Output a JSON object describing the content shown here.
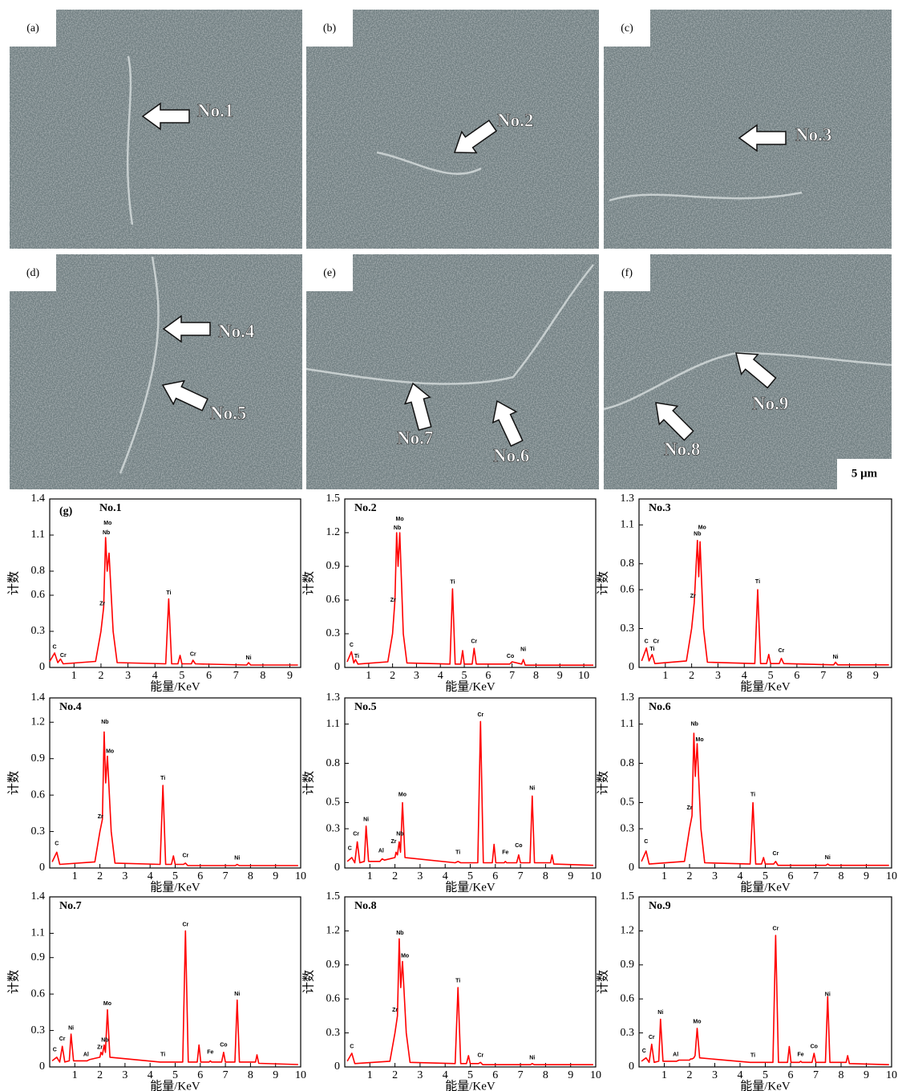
{
  "sem_panels": [
    {
      "label": "(a)",
      "markers": [
        "No.1"
      ]
    },
    {
      "label": "(b)",
      "markers": [
        "No.2"
      ]
    },
    {
      "label": "(c)",
      "markers": [
        "No.3"
      ]
    },
    {
      "label": "(d)",
      "markers": [
        "No.4",
        "No.5"
      ]
    },
    {
      "label": "(e)",
      "markers": [
        "No.7",
        "No.6"
      ]
    },
    {
      "label": "(f)",
      "markers": [
        "No.9",
        "No.8"
      ],
      "scale_bar": "5 μm"
    }
  ],
  "chart_data": [
    {
      "type": "line",
      "panel_label": "(g)",
      "title": "No.1",
      "xlabel": "能量/KeV",
      "ylabel": "计数",
      "color": "#ff0000",
      "xlim": [
        0.1,
        9.4
      ],
      "xticks": [
        1,
        2,
        3,
        4,
        5,
        6,
        7,
        8,
        9
      ],
      "ylim": [
        0,
        1.4
      ],
      "yticks": [
        0,
        0.3,
        0.6,
        0.8,
        1.1,
        1.4
      ],
      "x": [
        0.1,
        0.28,
        0.4,
        0.5,
        0.6,
        1.8,
        2.0,
        2.1,
        2.17,
        2.23,
        2.3,
        2.45,
        2.6,
        4.4,
        4.51,
        4.62,
        4.85,
        4.93,
        5.0,
        5.35,
        5.41,
        5.5,
        7.4,
        7.47,
        7.55,
        9.3
      ],
      "values": [
        0.05,
        0.12,
        0.04,
        0.07,
        0.03,
        0.05,
        0.3,
        0.5,
        1.08,
        0.8,
        0.95,
        0.3,
        0.04,
        0.03,
        0.57,
        0.03,
        0.03,
        0.1,
        0.03,
        0.03,
        0.06,
        0.03,
        0.02,
        0.04,
        0.02,
        0.02
      ],
      "annotations": [
        {
          "text": "C",
          "x": 0.28,
          "y": 0.17
        },
        {
          "text": "Cr",
          "x": 0.6,
          "y": 0.1
        },
        {
          "text": "Zr",
          "x": 2.05,
          "y": 0.53
        },
        {
          "text": "Nb",
          "x": 2.2,
          "y": 1.12
        },
        {
          "text": "Mo",
          "x": 2.25,
          "y": 1.2
        },
        {
          "text": "Ti",
          "x": 4.51,
          "y": 0.62
        },
        {
          "text": "Cr",
          "x": 5.41,
          "y": 0.11
        },
        {
          "text": "Ni",
          "x": 7.47,
          "y": 0.08
        }
      ]
    },
    {
      "type": "line",
      "title": "No.2",
      "xlabel": "能量/KeV",
      "ylabel": "计数",
      "color": "#ff0000",
      "xlim": [
        0,
        10.5
      ],
      "xticks": [
        1,
        2,
        3,
        4,
        5,
        6,
        7,
        8,
        9,
        10
      ],
      "ylim": [
        0,
        1.5
      ],
      "yticks": [
        0,
        0.3,
        0.6,
        0.9,
        1.2,
        1.5
      ],
      "x": [
        0.1,
        0.28,
        0.38,
        0.45,
        0.55,
        1.8,
        2.0,
        2.1,
        2.17,
        2.23,
        2.3,
        2.45,
        2.6,
        4.4,
        4.51,
        4.62,
        4.85,
        4.93,
        5.0,
        5.33,
        5.41,
        5.5,
        6.9,
        7.0,
        7.4,
        7.47,
        7.55,
        10.4
      ],
      "values": [
        0.05,
        0.14,
        0.04,
        0.07,
        0.03,
        0.05,
        0.3,
        0.6,
        1.2,
        0.9,
        1.2,
        0.3,
        0.04,
        0.03,
        0.7,
        0.03,
        0.03,
        0.15,
        0.03,
        0.03,
        0.17,
        0.03,
        0.03,
        0.05,
        0.03,
        0.07,
        0.02,
        0.02
      ],
      "annotations": [
        {
          "text": "C",
          "x": 0.28,
          "y": 0.2
        },
        {
          "text": "Ti",
          "x": 0.5,
          "y": 0.1
        },
        {
          "text": "Zr",
          "x": 2.02,
          "y": 0.6
        },
        {
          "text": "Nb",
          "x": 2.2,
          "y": 1.24
        },
        {
          "text": "Mo",
          "x": 2.3,
          "y": 1.32
        },
        {
          "text": "Ti",
          "x": 4.51,
          "y": 0.76
        },
        {
          "text": "Cr",
          "x": 5.41,
          "y": 0.23
        },
        {
          "text": "Co",
          "x": 6.93,
          "y": 0.1
        },
        {
          "text": "Ni",
          "x": 7.47,
          "y": 0.16
        }
      ]
    },
    {
      "type": "line",
      "title": "No.3",
      "xlabel": "能量/KeV",
      "ylabel": "计数",
      "color": "#ff0000",
      "xlim": [
        0,
        9.6
      ],
      "xticks": [
        1,
        2,
        3,
        4,
        5,
        6,
        7,
        8,
        9
      ],
      "ylim": [
        0,
        1.3
      ],
      "yticks": [
        0,
        0.3,
        0.6,
        0.8,
        1.1,
        1.3
      ],
      "x": [
        0.1,
        0.28,
        0.38,
        0.5,
        0.6,
        1.8,
        2.0,
        2.1,
        2.22,
        2.27,
        2.32,
        2.45,
        2.6,
        4.4,
        4.51,
        4.62,
        4.85,
        4.93,
        5.0,
        5.33,
        5.41,
        5.5,
        7.4,
        7.47,
        7.55,
        9.5
      ],
      "values": [
        0.05,
        0.15,
        0.05,
        0.1,
        0.03,
        0.05,
        0.3,
        0.5,
        0.98,
        0.7,
        0.97,
        0.3,
        0.04,
        0.03,
        0.6,
        0.03,
        0.03,
        0.1,
        0.03,
        0.03,
        0.07,
        0.03,
        0.02,
        0.04,
        0.02,
        0.02
      ],
      "annotations": [
        {
          "text": "C",
          "x": 0.28,
          "y": 0.2
        },
        {
          "text": "Cr",
          "x": 0.65,
          "y": 0.2
        },
        {
          "text": "Ti",
          "x": 0.5,
          "y": 0.14
        },
        {
          "text": "Zr",
          "x": 2.05,
          "y": 0.55
        },
        {
          "text": "Nb",
          "x": 2.22,
          "y": 1.03
        },
        {
          "text": "Mo",
          "x": 2.4,
          "y": 1.08
        },
        {
          "text": "Ti",
          "x": 4.51,
          "y": 0.66
        },
        {
          "text": "Cr",
          "x": 5.41,
          "y": 0.13
        },
        {
          "text": "Ni",
          "x": 7.47,
          "y": 0.08
        }
      ]
    },
    {
      "type": "line",
      "title": "No.4",
      "xlabel": "能量/KeV",
      "ylabel": "计数",
      "color": "#ff0000",
      "xlim": [
        0,
        10
      ],
      "xticks": [
        1,
        2,
        3,
        4,
        5,
        6,
        7,
        8,
        9,
        10
      ],
      "ylim": [
        0,
        1.4
      ],
      "yticks": [
        0,
        0.3,
        0.6,
        0.9,
        1.2,
        1.4
      ],
      "x": [
        0.1,
        0.28,
        0.4,
        1.8,
        2.0,
        2.1,
        2.17,
        2.23,
        2.3,
        2.45,
        2.6,
        4.4,
        4.51,
        4.62,
        4.85,
        4.93,
        5.0,
        5.33,
        5.41,
        5.5,
        7.4,
        7.47,
        7.55,
        9.9
      ],
      "values": [
        0.05,
        0.13,
        0.03,
        0.05,
        0.3,
        0.4,
        1.12,
        0.7,
        0.92,
        0.3,
        0.04,
        0.03,
        0.68,
        0.03,
        0.03,
        0.1,
        0.03,
        0.03,
        0.04,
        0.02,
        0.02,
        0.03,
        0.02,
        0.02
      ],
      "annotations": [
        {
          "text": "C",
          "x": 0.28,
          "y": 0.2
        },
        {
          "text": "Zr",
          "x": 2.02,
          "y": 0.42
        },
        {
          "text": "Nb",
          "x": 2.2,
          "y": 1.2
        },
        {
          "text": "Mo",
          "x": 2.4,
          "y": 0.96
        },
        {
          "text": "Ti",
          "x": 4.51,
          "y": 0.74
        },
        {
          "text": "Cr",
          "x": 5.41,
          "y": 0.1
        },
        {
          "text": "Ni",
          "x": 7.47,
          "y": 0.08
        }
      ]
    },
    {
      "type": "line",
      "title": "No.5",
      "xlabel": "能量/KeV",
      "ylabel": "计数",
      "color": "#ff0000",
      "xlim": [
        0,
        10
      ],
      "xticks": [
        1,
        2,
        3,
        4,
        5,
        6,
        7,
        8,
        9,
        10
      ],
      "ylim": [
        0,
        1.3
      ],
      "yticks": [
        0,
        0.3,
        0.5,
        0.8,
        1.1,
        1.3
      ],
      "x": [
        0.1,
        0.28,
        0.4,
        0.5,
        0.6,
        0.78,
        0.85,
        0.95,
        1.4,
        1.49,
        1.58,
        2.0,
        2.04,
        2.1,
        2.17,
        2.22,
        2.3,
        2.4,
        4.4,
        4.51,
        4.62,
        5.3,
        5.41,
        5.52,
        5.88,
        5.95,
        6.02,
        6.35,
        6.4,
        6.45,
        6.85,
        6.93,
        7.0,
        7.38,
        7.47,
        7.56,
        8.2,
        8.26,
        8.33,
        9.9
      ],
      "values": [
        0.05,
        0.08,
        0.04,
        0.2,
        0.04,
        0.05,
        0.32,
        0.05,
        0.05,
        0.07,
        0.06,
        0.08,
        0.12,
        0.1,
        0.2,
        0.12,
        0.5,
        0.08,
        0.04,
        0.05,
        0.04,
        0.04,
        1.12,
        0.04,
        0.04,
        0.18,
        0.04,
        0.04,
        0.05,
        0.04,
        0.04,
        0.1,
        0.04,
        0.04,
        0.55,
        0.04,
        0.04,
        0.1,
        0.03,
        0.02
      ],
      "annotations": [
        {
          "text": "C",
          "x": 0.2,
          "y": 0.15
        },
        {
          "text": "Cr",
          "x": 0.45,
          "y": 0.26
        },
        {
          "text": "Ni",
          "x": 0.85,
          "y": 0.37
        },
        {
          "text": "Al",
          "x": 1.45,
          "y": 0.13
        },
        {
          "text": "Zr",
          "x": 1.95,
          "y": 0.2
        },
        {
          "text": "Nb",
          "x": 2.2,
          "y": 0.26
        },
        {
          "text": "Mo",
          "x": 2.3,
          "y": 0.56
        },
        {
          "text": "Ti",
          "x": 4.51,
          "y": 0.12
        },
        {
          "text": "Cr",
          "x": 5.41,
          "y": 1.17
        },
        {
          "text": "Fe",
          "x": 6.4,
          "y": 0.12
        },
        {
          "text": "Co",
          "x": 6.93,
          "y": 0.17
        },
        {
          "text": "Ni",
          "x": 7.47,
          "y": 0.61
        }
      ]
    },
    {
      "type": "line",
      "title": "No.6",
      "xlabel": "能量/KeV",
      "ylabel": "计数",
      "color": "#ff0000",
      "xlim": [
        0,
        10
      ],
      "xticks": [
        1,
        2,
        3,
        4,
        5,
        6,
        7,
        8,
        9,
        10
      ],
      "ylim": [
        0,
        1.3
      ],
      "yticks": [
        0,
        0.3,
        0.5,
        0.8,
        1.1,
        1.3
      ],
      "x": [
        0.1,
        0.28,
        0.4,
        1.8,
        2.0,
        2.1,
        2.17,
        2.23,
        2.3,
        2.45,
        2.6,
        4.4,
        4.51,
        4.62,
        4.85,
        4.93,
        5.0,
        5.33,
        5.41,
        5.5,
        7.4,
        7.47,
        7.55,
        9.9
      ],
      "values": [
        0.05,
        0.13,
        0.03,
        0.05,
        0.3,
        0.4,
        1.03,
        0.7,
        0.95,
        0.3,
        0.04,
        0.03,
        0.5,
        0.03,
        0.03,
        0.08,
        0.03,
        0.03,
        0.05,
        0.02,
        0.02,
        0.03,
        0.02,
        0.02
      ],
      "annotations": [
        {
          "text": "C",
          "x": 0.28,
          "y": 0.2
        },
        {
          "text": "Zr",
          "x": 2.0,
          "y": 0.46
        },
        {
          "text": "Nb",
          "x": 2.2,
          "y": 1.1
        },
        {
          "text": "Mo",
          "x": 2.4,
          "y": 0.98
        },
        {
          "text": "Ti",
          "x": 4.51,
          "y": 0.56
        },
        {
          "text": "Cr",
          "x": 5.41,
          "y": 0.11
        },
        {
          "text": "Ni",
          "x": 7.47,
          "y": 0.08
        }
      ]
    },
    {
      "type": "line",
      "title": "No.7",
      "xlabel": "能量/KeV",
      "ylabel": "计数",
      "color": "#ff0000",
      "xlim": [
        0,
        10
      ],
      "xticks": [
        1,
        2,
        3,
        4,
        5,
        6,
        7,
        8,
        9,
        10
      ],
      "ylim": [
        0,
        1.4
      ],
      "yticks": [
        0,
        0.3,
        0.6,
        0.9,
        1.1,
        1.4
      ],
      "x": [
        0.1,
        0.28,
        0.4,
        0.5,
        0.6,
        0.78,
        0.85,
        0.95,
        1.4,
        1.49,
        1.58,
        2.0,
        2.04,
        2.1,
        2.17,
        2.22,
        2.3,
        2.4,
        4.4,
        4.51,
        4.62,
        5.3,
        5.41,
        5.52,
        5.88,
        5.95,
        6.02,
        6.35,
        6.4,
        6.45,
        6.85,
        6.93,
        7.0,
        7.38,
        7.47,
        7.56,
        8.2,
        8.26,
        8.33,
        9.9
      ],
      "values": [
        0.05,
        0.08,
        0.04,
        0.17,
        0.04,
        0.05,
        0.27,
        0.05,
        0.05,
        0.05,
        0.06,
        0.08,
        0.12,
        0.1,
        0.18,
        0.12,
        0.47,
        0.08,
        0.04,
        0.04,
        0.04,
        0.04,
        1.12,
        0.04,
        0.04,
        0.18,
        0.04,
        0.04,
        0.05,
        0.04,
        0.04,
        0.12,
        0.04,
        0.04,
        0.55,
        0.04,
        0.04,
        0.1,
        0.03,
        0.02
      ],
      "annotations": [
        {
          "text": "C",
          "x": 0.2,
          "y": 0.14
        },
        {
          "text": "Cr",
          "x": 0.5,
          "y": 0.23
        },
        {
          "text": "Ni",
          "x": 0.85,
          "y": 0.32
        },
        {
          "text": "Al",
          "x": 1.45,
          "y": 0.1
        },
        {
          "text": "Zr",
          "x": 2.0,
          "y": 0.16
        },
        {
          "text": "Nb",
          "x": 2.2,
          "y": 0.22
        },
        {
          "text": "Mo",
          "x": 2.3,
          "y": 0.52
        },
        {
          "text": "Ti",
          "x": 4.51,
          "y": 0.1
        },
        {
          "text": "Cr",
          "x": 5.41,
          "y": 1.17
        },
        {
          "text": "Fe",
          "x": 6.4,
          "y": 0.12
        },
        {
          "text": "Co",
          "x": 6.93,
          "y": 0.18
        },
        {
          "text": "Ni",
          "x": 7.47,
          "y": 0.6
        }
      ]
    },
    {
      "type": "line",
      "title": "No.8",
      "xlabel": "能量/KeV",
      "ylabel": "计数",
      "color": "#ff0000",
      "xlim": [
        0,
        10
      ],
      "xticks": [
        1,
        2,
        3,
        4,
        5,
        6,
        7,
        8,
        9,
        10
      ],
      "ylim": [
        0,
        1.5
      ],
      "yticks": [
        0,
        0.3,
        0.6,
        0.9,
        1.2,
        1.5
      ],
      "x": [
        0.1,
        0.28,
        0.4,
        1.8,
        2.0,
        2.1,
        2.17,
        2.23,
        2.3,
        2.45,
        2.6,
        4.4,
        4.51,
        4.62,
        4.85,
        4.93,
        5.0,
        5.33,
        5.41,
        5.5,
        7.4,
        7.47,
        7.55,
        9.9
      ],
      "values": [
        0.05,
        0.12,
        0.03,
        0.05,
        0.3,
        0.45,
        1.13,
        0.7,
        0.93,
        0.3,
        0.04,
        0.03,
        0.7,
        0.03,
        0.03,
        0.1,
        0.03,
        0.03,
        0.04,
        0.02,
        0.02,
        0.03,
        0.02,
        0.02
      ],
      "annotations": [
        {
          "text": "C",
          "x": 0.28,
          "y": 0.18
        },
        {
          "text": "Zr",
          "x": 2.0,
          "y": 0.5
        },
        {
          "text": "Nb",
          "x": 2.2,
          "y": 1.18
        },
        {
          "text": "Mo",
          "x": 2.4,
          "y": 0.98
        },
        {
          "text": "Ti",
          "x": 4.51,
          "y": 0.76
        },
        {
          "text": "Cr",
          "x": 5.41,
          "y": 0.1
        },
        {
          "text": "Ni",
          "x": 7.47,
          "y": 0.08
        }
      ]
    },
    {
      "type": "line",
      "title": "No.9",
      "xlabel": "能量/KeV",
      "ylabel": "计数",
      "color": "#ff0000",
      "xlim": [
        0,
        10
      ],
      "xticks": [
        1,
        2,
        3,
        4,
        5,
        6,
        7,
        8,
        9,
        10
      ],
      "ylim": [
        0,
        1.5
      ],
      "yticks": [
        0,
        0.3,
        0.6,
        0.9,
        1.2,
        1.5
      ],
      "x": [
        0.1,
        0.28,
        0.4,
        0.5,
        0.6,
        0.78,
        0.85,
        0.95,
        1.4,
        1.49,
        1.58,
        2.0,
        2.04,
        2.1,
        2.17,
        2.22,
        2.3,
        2.4,
        4.4,
        4.51,
        4.62,
        5.3,
        5.41,
        5.52,
        5.88,
        5.95,
        6.02,
        6.35,
        6.4,
        6.45,
        6.85,
        6.93,
        7.0,
        7.38,
        7.47,
        7.56,
        8.2,
        8.26,
        8.33,
        9.9
      ],
      "values": [
        0.05,
        0.08,
        0.04,
        0.2,
        0.04,
        0.05,
        0.42,
        0.05,
        0.05,
        0.05,
        0.06,
        0.06,
        0.07,
        0.07,
        0.08,
        0.1,
        0.34,
        0.08,
        0.04,
        0.04,
        0.04,
        0.04,
        1.16,
        0.04,
        0.04,
        0.18,
        0.04,
        0.04,
        0.05,
        0.04,
        0.04,
        0.12,
        0.04,
        0.04,
        0.62,
        0.04,
        0.04,
        0.1,
        0.03,
        0.02
      ],
      "annotations": [
        {
          "text": "C",
          "x": 0.2,
          "y": 0.14
        },
        {
          "text": "Cr",
          "x": 0.5,
          "y": 0.26
        },
        {
          "text": "Ni",
          "x": 0.85,
          "y": 0.48
        },
        {
          "text": "Al",
          "x": 1.45,
          "y": 0.11
        },
        {
          "text": "Mo",
          "x": 2.3,
          "y": 0.4
        },
        {
          "text": "Ti",
          "x": 4.51,
          "y": 0.1
        },
        {
          "text": "Cr",
          "x": 5.41,
          "y": 1.22
        },
        {
          "text": "Fe",
          "x": 6.4,
          "y": 0.11
        },
        {
          "text": "Co",
          "x": 6.93,
          "y": 0.18
        },
        {
          "text": "Ni",
          "x": 7.47,
          "y": 0.64
        }
      ]
    }
  ]
}
